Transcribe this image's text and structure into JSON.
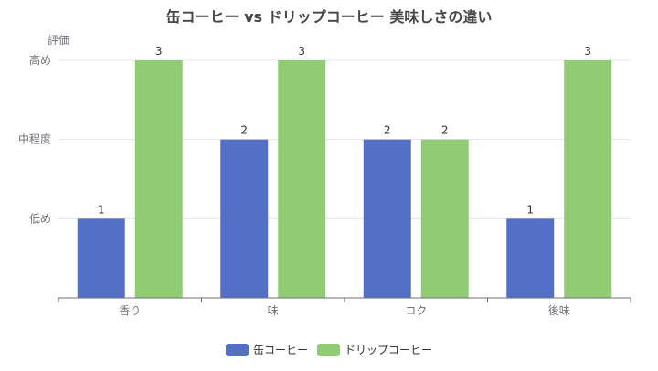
{
  "chart_data": {
    "type": "bar",
    "title": "缶コーヒー vs ドリップコーヒー 美味しさの違い",
    "ylabel": "評価",
    "xlabel": "",
    "categories": [
      "香り",
      "味",
      "コク",
      "後味"
    ],
    "y_tick_labels": [
      {
        "value": 1,
        "label": "低め"
      },
      {
        "value": 2,
        "label": "中程度"
      },
      {
        "value": 3,
        "label": "高め"
      }
    ],
    "ylim": [
      0,
      3
    ],
    "grid": true,
    "legend_position": "bottom-center",
    "series": [
      {
        "name": "缶コーヒー",
        "values": [
          1,
          2,
          2,
          1
        ],
        "color": "#5470c6"
      },
      {
        "name": "ドリップコーヒー",
        "values": [
          3,
          3,
          2,
          3
        ],
        "color": "#91cc75"
      }
    ]
  }
}
